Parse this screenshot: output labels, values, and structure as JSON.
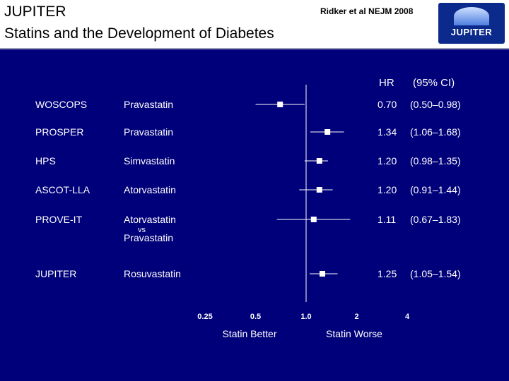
{
  "header": {
    "title": "JUPITER",
    "subtitle": "Statins and the Development of Diabetes",
    "citation": "Ridker et al NEJM 2008",
    "logo_text": "JUPITER"
  },
  "colors": {
    "background": "#00007a",
    "foreground": "#ffffff",
    "header_bg": "#ffffff"
  },
  "chart_data": {
    "type": "forest",
    "column_headers": {
      "hr": "HR",
      "ci": "(95% CI)"
    },
    "x_scale": "log",
    "xlim": [
      0.25,
      4
    ],
    "x_ticks": [
      {
        "value": 0.25,
        "label": "0.25"
      },
      {
        "value": 0.5,
        "label": "0.5"
      },
      {
        "value": 1.0,
        "label": "1.0"
      },
      {
        "value": 2,
        "label": "2"
      },
      {
        "value": 4,
        "label": "4"
      }
    ],
    "reference_line": 1.0,
    "left_label": "Statin Better",
    "right_label": "Statin Worse",
    "rows": [
      {
        "trial": "WOSCOPS",
        "drug": [
          "Pravastatin"
        ],
        "hr": 0.7,
        "lo": 0.5,
        "hi": 0.98,
        "hr_text": "0.70",
        "ci_text": "(0.50–0.98)"
      },
      {
        "trial": "PROSPER",
        "drug": [
          "Pravastatin"
        ],
        "hr": 1.34,
        "lo": 1.06,
        "hi": 1.68,
        "hr_text": "1.34",
        "ci_text": "(1.06–1.68)"
      },
      {
        "trial": "HPS",
        "drug": [
          "Simvastatin"
        ],
        "hr": 1.2,
        "lo": 0.98,
        "hi": 1.35,
        "hr_text": "1.20",
        "ci_text": "(0.98–1.35)"
      },
      {
        "trial": "ASCOT-LLA",
        "drug": [
          "Atorvastatin"
        ],
        "hr": 1.2,
        "lo": 0.91,
        "hi": 1.44,
        "hr_text": "1.20",
        "ci_text": "(0.91–1.44)"
      },
      {
        "trial": "PROVE-IT",
        "drug": [
          "Atorvastatin",
          "vs",
          "Pravastatin"
        ],
        "hr": 1.11,
        "lo": 0.67,
        "hi": 1.83,
        "hr_text": "1.11",
        "ci_text": "(0.67–1.83)"
      },
      {
        "trial": "JUPITER",
        "drug": [
          "Rosuvastatin"
        ],
        "hr": 1.25,
        "lo": 1.05,
        "hi": 1.54,
        "hr_text": "1.25",
        "ci_text": "(1.05–1.54)"
      }
    ]
  }
}
